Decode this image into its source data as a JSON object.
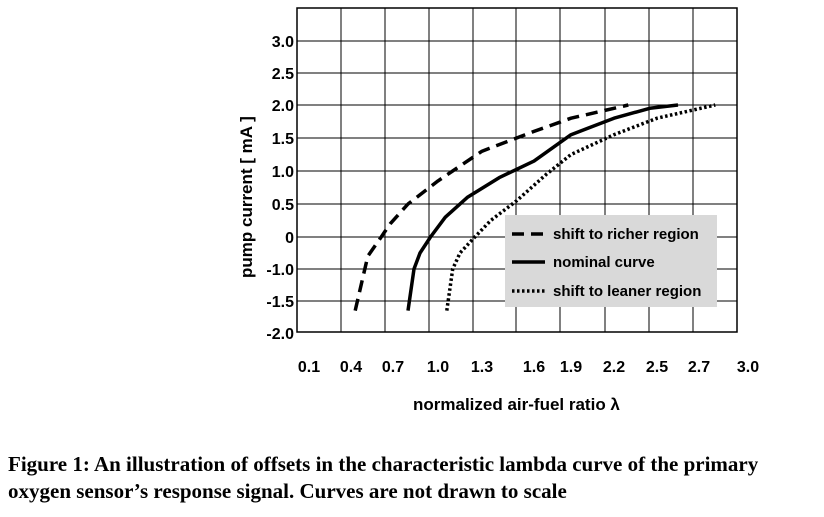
{
  "chart_data": {
    "type": "line",
    "title": "",
    "xlabel": "normalized air-fuel ratio λ",
    "ylabel": "pump current  [ mA ]",
    "xlim": [
      0.0,
      3.0
    ],
    "ylim": [
      -2.0,
      3.5
    ],
    "x_ticks": [
      {
        "v": 0.1,
        "label": "0.1"
      },
      {
        "v": 0.4,
        "label": "0.4"
      },
      {
        "v": 0.7,
        "label": "0.7"
      },
      {
        "v": 1.0,
        "label": "1.0"
      },
      {
        "v": 1.3,
        "label": "1.3"
      },
      {
        "v": 1.6,
        "label": "1.6"
      },
      {
        "v": 1.9,
        "label": "1.9"
      },
      {
        "v": 2.2,
        "label": "2.2"
      },
      {
        "v": 2.5,
        "label": "2.5"
      },
      {
        "v": 2.7,
        "label": "2.7"
      },
      {
        "v": 3.0,
        "label": "3.0"
      }
    ],
    "y_ticks": [
      {
        "v": 3.0,
        "label": "3.0"
      },
      {
        "v": 2.5,
        "label": "2.5"
      },
      {
        "v": 2.0,
        "label": "2.0"
      },
      {
        "v": 1.5,
        "label": "1.5"
      },
      {
        "v": 1.0,
        "label": "1.0"
      },
      {
        "v": 0.5,
        "label": "0.5"
      },
      {
        "v": 0.0,
        "label": "0"
      },
      {
        "v": -1.0,
        "label": "-1.0"
      },
      {
        "v": -1.5,
        "label": "-1.5"
      },
      {
        "v": -2.0,
        "label": "-2.0"
      }
    ],
    "grid": true,
    "legend_position": "lower-right",
    "series": [
      {
        "name": "shift to richer region",
        "style": "dashed",
        "points": [
          [
            0.43,
            -1.65
          ],
          [
            0.52,
            -0.6
          ],
          [
            0.6,
            -0.1
          ],
          [
            0.68,
            0.2
          ],
          [
            0.8,
            0.5
          ],
          [
            1.0,
            0.85
          ],
          [
            1.3,
            1.3
          ],
          [
            1.6,
            1.6
          ],
          [
            1.9,
            1.8
          ],
          [
            2.2,
            1.95
          ],
          [
            2.3,
            2.0
          ]
        ]
      },
      {
        "name": "nominal curve",
        "style": "solid",
        "points": [
          [
            0.8,
            -1.65
          ],
          [
            0.84,
            -1.0
          ],
          [
            0.88,
            -0.5
          ],
          [
            0.95,
            0.0
          ],
          [
            1.05,
            0.3
          ],
          [
            1.2,
            0.6
          ],
          [
            1.4,
            0.9
          ],
          [
            1.6,
            1.15
          ],
          [
            1.9,
            1.55
          ],
          [
            2.2,
            1.8
          ],
          [
            2.45,
            1.95
          ],
          [
            2.6,
            2.0
          ]
        ]
      },
      {
        "name": "shift to leaner region",
        "style": "dotted",
        "points": [
          [
            1.06,
            -1.65
          ],
          [
            1.1,
            -1.0
          ],
          [
            1.15,
            -0.5
          ],
          [
            1.22,
            -0.15
          ],
          [
            1.35,
            0.25
          ],
          [
            1.5,
            0.55
          ],
          [
            1.7,
            0.95
          ],
          [
            1.9,
            1.25
          ],
          [
            2.2,
            1.55
          ],
          [
            2.5,
            1.8
          ],
          [
            2.8,
            2.0
          ]
        ]
      }
    ]
  },
  "caption": "Figure 1: An illustration of offsets in the characteristic lambda curve of the primary oxygen sensor’s response signal. Curves are not drawn to scale"
}
